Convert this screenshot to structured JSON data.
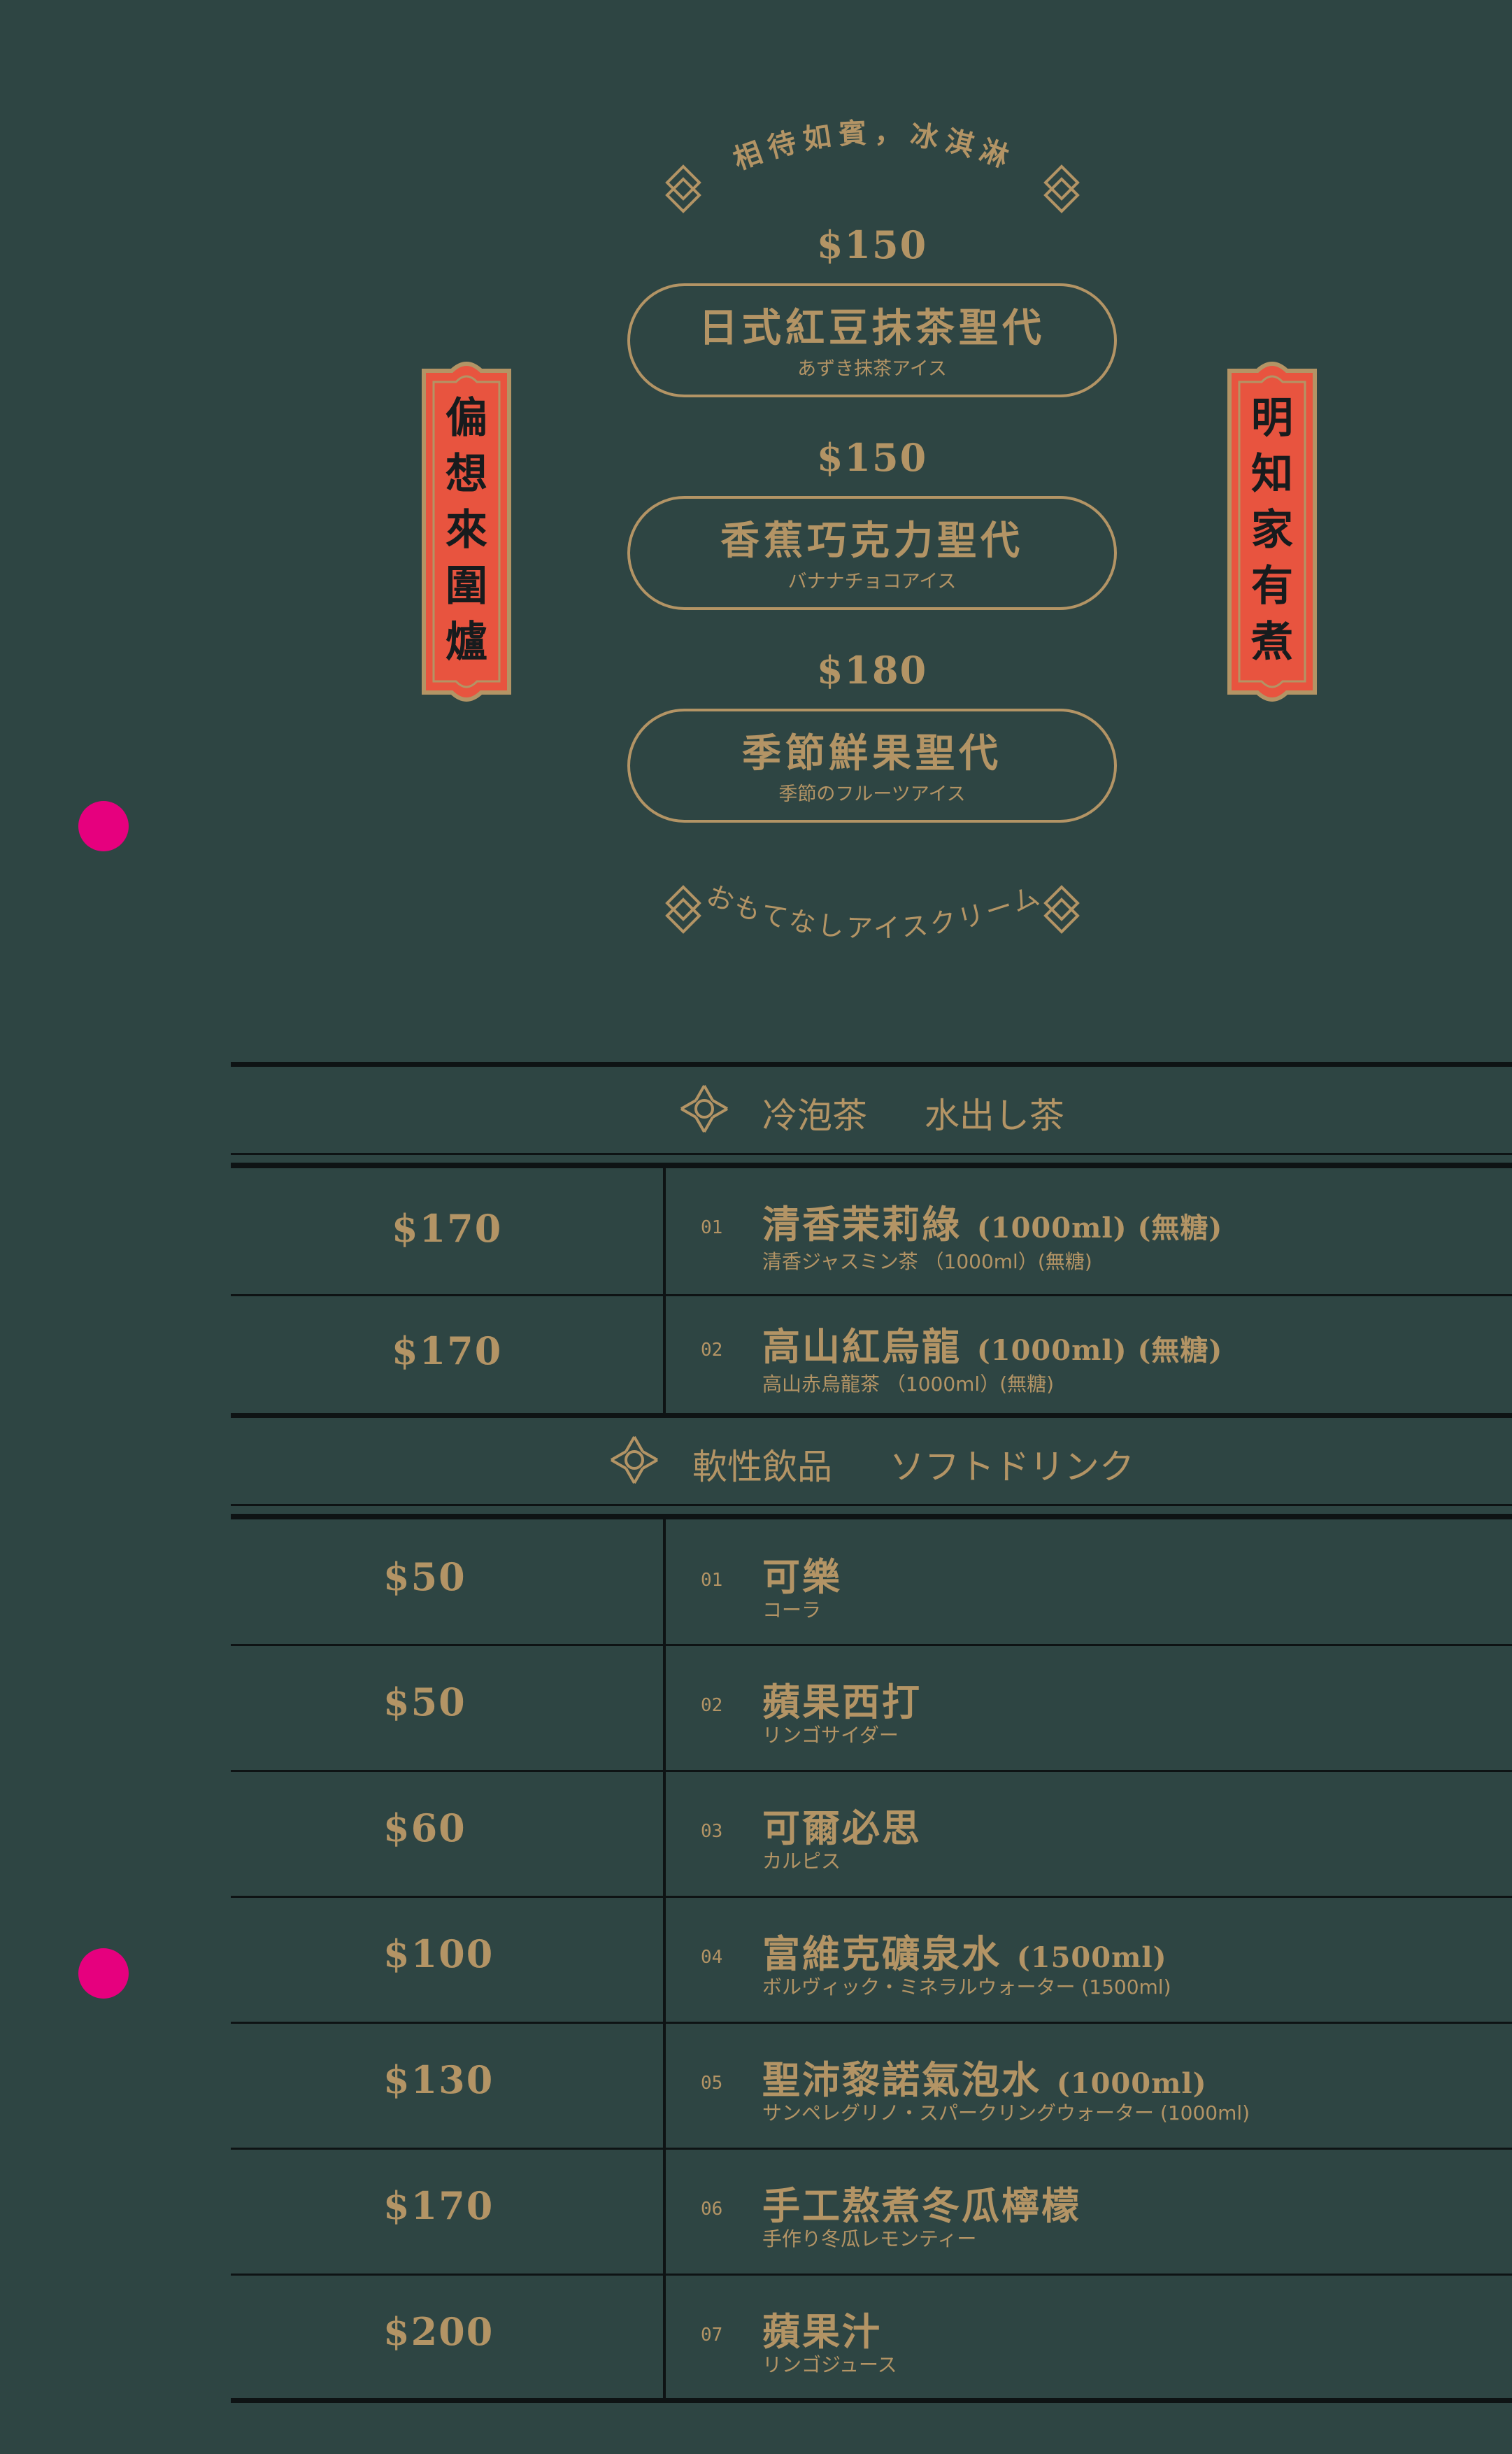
{
  "dessert": {
    "top_arc": "相待如賓，冰淇淋",
    "bottom_arc": "おもてなしアイスクリーム",
    "items": [
      {
        "price": "$150",
        "name": "日式紅豆抹茶聖代",
        "jp": "あずき抹茶アイス"
      },
      {
        "price": "$150",
        "name": "香蕉巧克力聖代",
        "jp": "バナナチョコアイス"
      },
      {
        "price": "$180",
        "name": "季節鮮果聖代",
        "jp": "季節のフルーツアイス"
      }
    ],
    "banner_left": "偏想來圍爐",
    "banner_right": "明知家有煮"
  },
  "cold_brew": {
    "title": "冷泡茶",
    "subtitle": "水出し茶",
    "items": [
      {
        "price": "$170",
        "num": "01",
        "name": "清香茉莉綠",
        "extra": "(1000ml) (無糖)",
        "jp": "清香ジャスミン茶 （1000ml）(無糖)"
      },
      {
        "price": "$170",
        "num": "02",
        "name": "高山紅烏龍",
        "extra": "(1000ml) (無糖)",
        "jp": "高山赤烏龍茶 （1000ml）(無糖)"
      }
    ]
  },
  "soft_drinks": {
    "title": "軟性飲品",
    "subtitle": "ソフトドリンク",
    "items": [
      {
        "price": "$50",
        "num": "01",
        "name": "可樂",
        "extra": "",
        "jp": "コーラ"
      },
      {
        "price": "$50",
        "num": "02",
        "name": "蘋果西打",
        "extra": "",
        "jp": "リンゴサイダー"
      },
      {
        "price": "$60",
        "num": "03",
        "name": "可爾必思",
        "extra": "",
        "jp": "カルピス"
      },
      {
        "price": "$100",
        "num": "04",
        "name": "富維克礦泉水",
        "extra": "(1500ml)",
        "jp": "ボルヴィック・ミネラルウォーター (1500ml)"
      },
      {
        "price": "$130",
        "num": "05",
        "name": "聖沛黎諾氣泡水",
        "extra": "(1000ml)",
        "jp": "サンペレグリノ・スパークリングウォーター (1000ml)"
      },
      {
        "price": "$170",
        "num": "06",
        "name": "手工熬煮冬瓜檸檬",
        "extra": "",
        "jp": "手作り冬瓜レモンティー"
      },
      {
        "price": "$200",
        "num": "07",
        "name": "蘋果汁",
        "extra": "",
        "jp": "リンゴジュース"
      }
    ]
  },
  "colors": {
    "background": "#2e4543",
    "gold": "#b39465",
    "red": "#e8543f",
    "line": "#0e1314",
    "dot": "#e6007e"
  }
}
